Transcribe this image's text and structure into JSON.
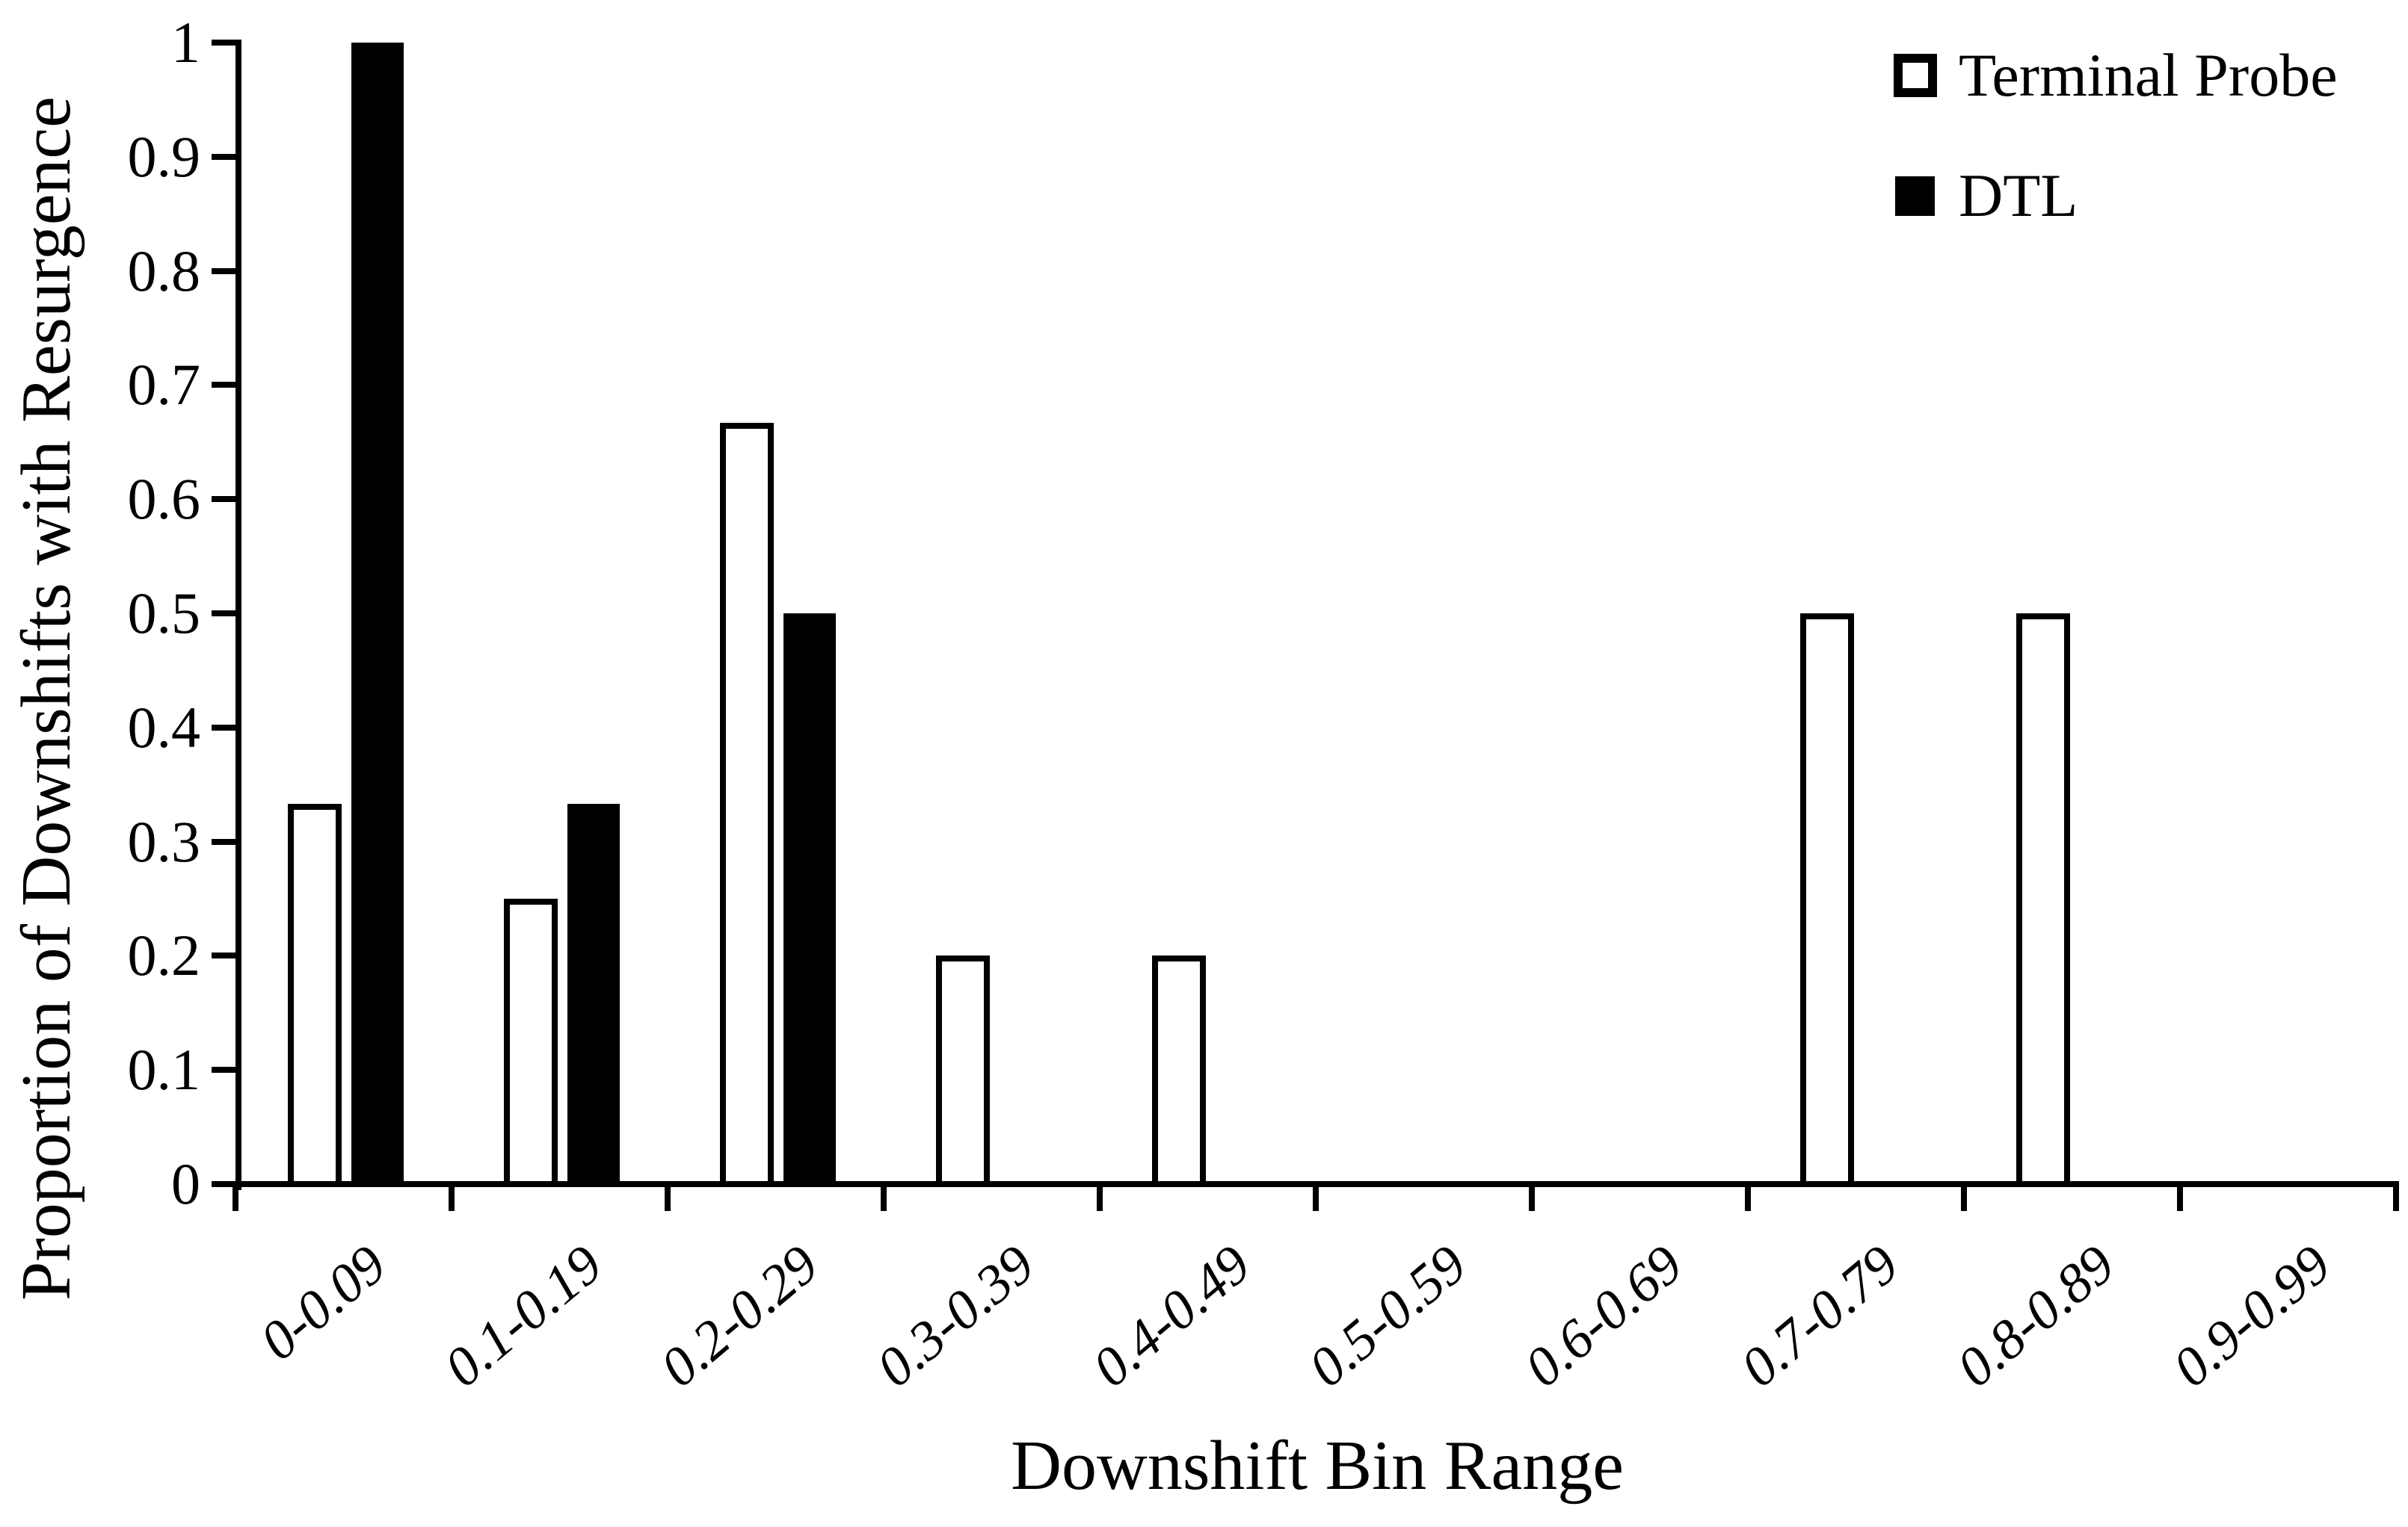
{
  "chart_data": {
    "type": "bar",
    "title": "",
    "xlabel": "Downshift Bin Range",
    "ylabel": "Proportion of Downshifts with Resurgence",
    "categories": [
      "0-0.09",
      "0.1-0.19",
      "0.2-0.29",
      "0.3-0.39",
      "0.4-0.49",
      "0.5-0.59",
      "0.6-0.69",
      "0.7-0.79",
      "0.8-0.89",
      "0.9-0.99"
    ],
    "series": [
      {
        "name": "Terminal Probe",
        "style": "outline",
        "fill": "#ffffff",
        "border": "#000000",
        "values": [
          0.333,
          0.25,
          0.667,
          0.2,
          0.2,
          0,
          0,
          0.5,
          0.5,
          0
        ]
      },
      {
        "name": "DTL",
        "style": "solid",
        "fill": "#000000",
        "border": "#000000",
        "values": [
          1,
          0.333,
          0.5,
          0,
          0,
          0,
          0,
          0,
          0,
          0
        ]
      }
    ],
    "y_axis": {
      "min": 0,
      "max": 1,
      "step": 0.1,
      "tick_labels": [
        "0",
        "0.1",
        "0.2",
        "0.3",
        "0.4",
        "0.5",
        "0.6",
        "0.7",
        "0.8",
        "0.9",
        "1"
      ]
    },
    "grid": false,
    "legend_position": "top-right",
    "colors": {
      "foreground": "#000000",
      "background": "#ffffff"
    }
  }
}
